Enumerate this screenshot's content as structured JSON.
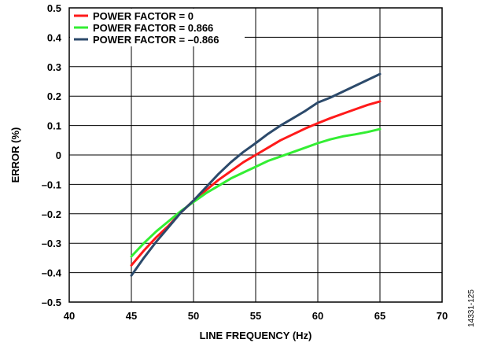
{
  "chart_data": {
    "type": "line",
    "xlabel": "LINE FREQUENCY (Hz)",
    "ylabel": "ERROR (%)",
    "xlim": [
      40,
      70
    ],
    "ylim": [
      -0.5,
      0.5
    ],
    "x_ticks": [
      40,
      45,
      50,
      55,
      60,
      65,
      70
    ],
    "x_tick_labels": [
      "40",
      "45",
      "50",
      "55",
      "60",
      "65",
      "70"
    ],
    "y_ticks": [
      -0.5,
      -0.4,
      -0.3,
      -0.2,
      -0.1,
      0,
      0.1,
      0.2,
      0.3,
      0.4,
      0.5
    ],
    "y_tick_labels": [
      "–0.5",
      "–0.4",
      "–0.3",
      "–0.2",
      "–0.1",
      "0",
      "0.1",
      "0.2",
      "0.3",
      "0.4",
      "0.5"
    ],
    "grid": true,
    "legend_position": "top-left",
    "series": [
      {
        "name": "POWER FACTOR = 0",
        "color": "#ff1a1a",
        "x": [
          45,
          46,
          47,
          48,
          49,
          50,
          51,
          52,
          53,
          54,
          55,
          56,
          57,
          58,
          59,
          60,
          61,
          62,
          63,
          64,
          65
        ],
        "y": [
          -0.375,
          -0.325,
          -0.28,
          -0.24,
          -0.195,
          -0.155,
          -0.12,
          -0.085,
          -0.055,
          -0.025,
          0.0,
          0.025,
          0.05,
          0.07,
          0.09,
          0.108,
          0.125,
          0.14,
          0.155,
          0.17,
          0.182
        ]
      },
      {
        "name": "POWER FACTOR = 0.866",
        "color": "#33ee33",
        "x": [
          45,
          46,
          47,
          48,
          49,
          50,
          51,
          52,
          53,
          54,
          55,
          56,
          57,
          58,
          59,
          60,
          61,
          62,
          63,
          64,
          65
        ],
        "y": [
          -0.345,
          -0.3,
          -0.26,
          -0.225,
          -0.19,
          -0.16,
          -0.13,
          -0.105,
          -0.08,
          -0.06,
          -0.04,
          -0.02,
          -0.005,
          0.01,
          0.025,
          0.04,
          0.053,
          0.063,
          0.07,
          0.078,
          0.088
        ]
      },
      {
        "name": "POWER FACTOR = –0.866",
        "color": "#2c4a6b",
        "x": [
          45,
          46,
          47,
          48,
          49,
          50,
          51,
          52,
          53,
          54,
          55,
          56,
          57,
          58,
          59,
          60,
          61,
          62,
          63,
          64,
          65
        ],
        "y": [
          -0.41,
          -0.35,
          -0.295,
          -0.245,
          -0.195,
          -0.155,
          -0.11,
          -0.065,
          -0.025,
          0.01,
          0.04,
          0.072,
          0.1,
          0.125,
          0.15,
          0.178,
          0.195,
          0.215,
          0.235,
          0.255,
          0.275
        ]
      }
    ]
  },
  "figure_id": "14331-125"
}
